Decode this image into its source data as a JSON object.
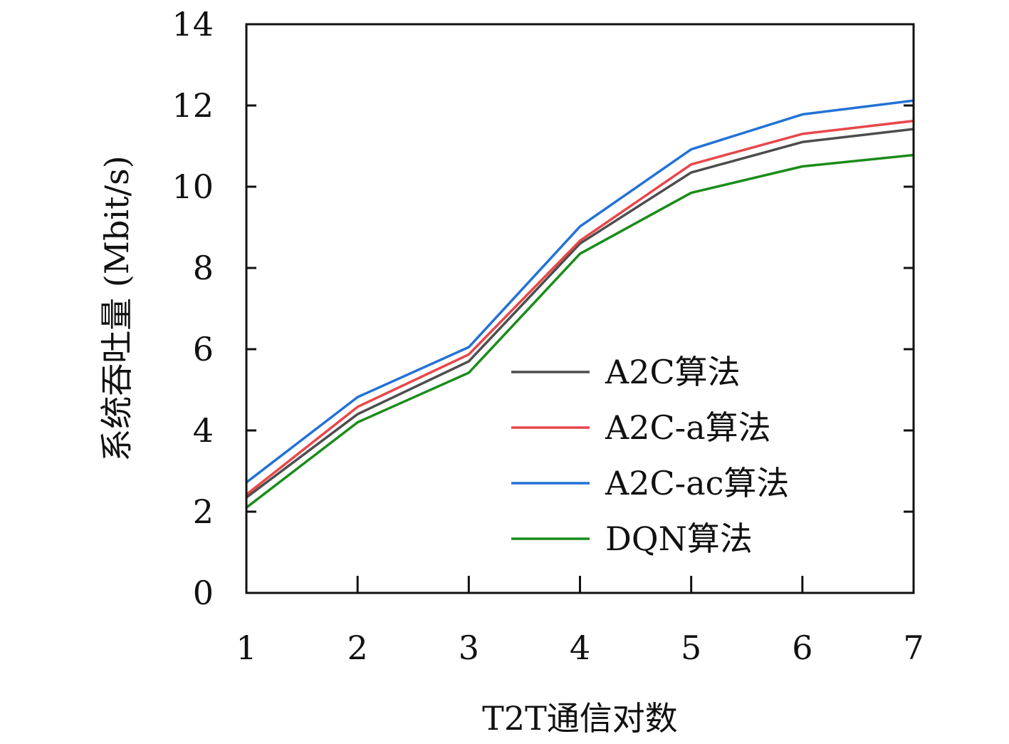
{
  "chart_data": {
    "type": "line",
    "title": "",
    "xlabel": "T2T通信对数",
    "ylabel": "系统吞吐量 (Mbit/s)",
    "x": [
      1,
      2,
      3,
      4,
      5,
      6,
      7
    ],
    "xlim": [
      1,
      7
    ],
    "ylim": [
      0,
      14
    ],
    "xticks": [
      1,
      2,
      3,
      4,
      5,
      6,
      7
    ],
    "yticks": [
      0,
      2,
      4,
      6,
      8,
      10,
      12,
      14
    ],
    "grid": false,
    "legend_position": "lower-right",
    "series": [
      {
        "name": "A2C算法",
        "color": "#4d4d4d",
        "values": [
          2.35,
          4.4,
          5.7,
          8.6,
          10.35,
          11.1,
          11.42
        ]
      },
      {
        "name": "A2C-a算法",
        "color": "#e8474b",
        "values": [
          2.42,
          4.58,
          5.87,
          8.67,
          10.55,
          11.3,
          11.62
        ]
      },
      {
        "name": "A2C-ac算法",
        "color": "#2272d6",
        "values": [
          2.72,
          4.82,
          6.05,
          9.02,
          10.92,
          11.78,
          12.12
        ]
      },
      {
        "name": "DQN算法",
        "color": "#1a8c1a",
        "values": [
          2.1,
          4.2,
          5.42,
          8.35,
          9.85,
          10.5,
          10.78
        ]
      }
    ]
  }
}
